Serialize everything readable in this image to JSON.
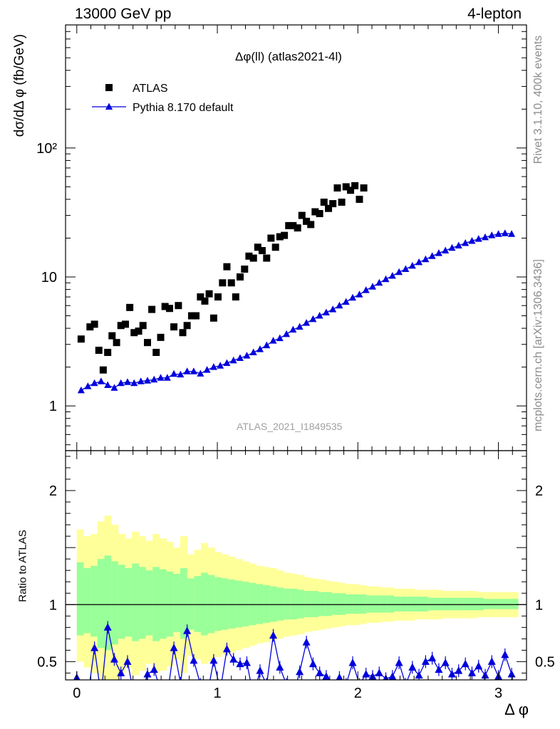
{
  "header": {
    "left": "13000 GeV pp",
    "right": "4-lepton"
  },
  "side_text": {
    "rivet": "Rivet 3.1.10,  400k events",
    "mcplots": "mcplots.cern.ch [arXiv:1306.3436]"
  },
  "watermark": "ATLAS_2021_I1849535",
  "chart_data": [
    {
      "type": "scatter",
      "title": "Δφ(ll) (atlas2021-4l)",
      "ylabel": "dσ/dΔ φ (fb/GeV)",
      "xlabel": "Δ φ",
      "yscale": "log",
      "xlim": [
        -0.08,
        3.2
      ],
      "ylim": [
        0.45,
        900
      ],
      "y_ticks": [
        1,
        10,
        100
      ],
      "y_tick_labels": [
        "1",
        "10",
        "10²"
      ],
      "legend_position": "top-left",
      "series": [
        {
          "name": "ATLAS",
          "marker": "square",
          "color": "#000000",
          "x": [
            0.031,
            0.094,
            0.126,
            0.157,
            0.188,
            0.22,
            0.251,
            0.283,
            0.314,
            0.346,
            0.377,
            0.408,
            0.44,
            0.471,
            0.503,
            0.534,
            0.565,
            0.597,
            0.628,
            0.66,
            0.691,
            0.723,
            0.754,
            0.785,
            0.817,
            0.848,
            0.88,
            0.911,
            0.942,
            0.974,
            1.005,
            1.037,
            1.068,
            1.1,
            1.131,
            1.162,
            1.194,
            1.225,
            1.257,
            1.288,
            1.319,
            1.351,
            1.382,
            1.414,
            1.445,
            1.477,
            1.508,
            1.539,
            1.571,
            1.602,
            1.634,
            1.665,
            1.696,
            1.728,
            1.759,
            1.791,
            1.822,
            1.854,
            1.885,
            1.916,
            1.948,
            1.979,
            2.011,
            2.042,
            2.073,
            2.105,
            2.136,
            2.168,
            2.199,
            2.231,
            2.262,
            2.293,
            2.325,
            2.356,
            2.388,
            2.419,
            2.45,
            2.482,
            2.513,
            2.545,
            2.576,
            2.608,
            2.639,
            2.67,
            2.702,
            2.733,
            2.765,
            2.796,
            2.827,
            2.859,
            2.89,
            2.922,
            2.953,
            2.985,
            3.016,
            3.047,
            3.079,
            3.11
          ],
          "values": [
            3.3,
            4.1,
            4.3,
            2.7,
            1.9,
            2.6,
            3.5,
            3.1,
            4.2,
            4.3,
            5.8,
            3.7,
            3.8,
            4.2,
            3.1,
            5.6,
            2.6,
            3.4,
            5.9,
            5.7,
            4.1,
            6.0,
            3.7,
            4.2,
            5.0,
            5.0,
            7.0,
            6.5,
            7.4,
            4.8,
            7.0,
            9.0,
            12.0,
            9.0,
            7.0,
            10.0,
            11.5,
            14.5,
            14.0,
            17.0,
            16.0,
            14.0,
            20.0,
            17.0,
            20.5,
            21.0,
            25.0,
            25.0,
            24.0,
            30.0,
            27.0,
            25.5,
            32.0,
            31.0,
            38.0,
            34.0,
            37.0,
            49.0,
            38.0,
            50.0,
            47.0,
            51.0,
            40.0,
            49.0,
            null,
            null,
            null,
            null,
            null,
            null,
            null,
            null,
            null,
            null,
            null,
            null,
            null,
            null,
            null,
            null,
            null,
            null,
            null,
            null,
            null,
            null,
            null,
            null,
            null,
            null,
            null,
            null,
            null,
            null,
            null,
            null,
            null,
            null
          ]
        },
        {
          "name": "Pythia 8.170 default",
          "marker": "triangle",
          "color": "#0000dd",
          "x": [
            0.031,
            0.079,
            0.126,
            0.173,
            0.22,
            0.267,
            0.314,
            0.361,
            0.408,
            0.456,
            0.503,
            0.55,
            0.597,
            0.644,
            0.691,
            0.738,
            0.785,
            0.832,
            0.88,
            0.927,
            0.974,
            1.021,
            1.068,
            1.115,
            1.162,
            1.21,
            1.257,
            1.304,
            1.351,
            1.398,
            1.445,
            1.492,
            1.539,
            1.586,
            1.634,
            1.681,
            1.728,
            1.775,
            1.822,
            1.869,
            1.916,
            1.963,
            2.011,
            2.058,
            2.105,
            2.152,
            2.199,
            2.246,
            2.293,
            2.34,
            2.388,
            2.435,
            2.482,
            2.529,
            2.576,
            2.623,
            2.67,
            2.717,
            2.765,
            2.812,
            2.859,
            2.906,
            2.953,
            3.0,
            3.047,
            3.094
          ],
          "values": [
            1.32,
            1.42,
            1.5,
            1.55,
            1.45,
            1.38,
            1.5,
            1.53,
            1.5,
            1.55,
            1.57,
            1.6,
            1.65,
            1.65,
            1.77,
            1.75,
            1.85,
            1.85,
            1.78,
            1.9,
            2.0,
            2.05,
            2.15,
            2.25,
            2.35,
            2.45,
            2.6,
            2.75,
            2.95,
            3.2,
            3.35,
            3.6,
            3.9,
            4.1,
            4.4,
            4.7,
            5.0,
            5.3,
            5.6,
            6.0,
            6.4,
            6.9,
            7.3,
            7.9,
            8.4,
            9.0,
            9.6,
            10.2,
            10.9,
            11.5,
            12.2,
            13.0,
            13.7,
            14.5,
            15.3,
            16.0,
            16.8,
            17.5,
            18.3,
            19.0,
            19.7,
            20.3,
            21.0,
            21.5,
            21.8,
            21.5
          ]
        }
      ]
    },
    {
      "type": "line",
      "ylabel": "Ratio to ATLAS",
      "xlabel": "Δ φ",
      "xlim": [
        -0.08,
        3.2
      ],
      "ylim": [
        0.34,
        2.35
      ],
      "x_ticks": [
        0,
        1,
        2,
        3
      ],
      "y_ticks": [
        0.5,
        1,
        2
      ],
      "reference_line": 1,
      "bands": {
        "yellow_upper": [
          1.66,
          1.6,
          1.62,
          1.73,
          1.78,
          1.7,
          1.62,
          1.58,
          1.64,
          1.6,
          1.56,
          1.62,
          1.58,
          1.55,
          1.5,
          1.6,
          1.44,
          1.48,
          1.54,
          1.5,
          1.46,
          1.44,
          1.42,
          1.4,
          1.38,
          1.36,
          1.34,
          1.33,
          1.32,
          1.3,
          1.28,
          1.27,
          1.26,
          1.24,
          1.23,
          1.22,
          1.21,
          1.2,
          1.19,
          1.18,
          1.18,
          1.17,
          1.16,
          1.16,
          1.15,
          1.15,
          1.14,
          1.14,
          1.14,
          1.13,
          1.13,
          1.13,
          1.13,
          1.12,
          1.12,
          1.12,
          1.12,
          1.12,
          1.11,
          1.11,
          1.11,
          1.11,
          1.11,
          1.11
        ],
        "green_upper": [
          1.37,
          1.32,
          1.34,
          1.4,
          1.43,
          1.38,
          1.35,
          1.32,
          1.36,
          1.33,
          1.3,
          1.33,
          1.31,
          1.29,
          1.27,
          1.32,
          1.23,
          1.25,
          1.28,
          1.26,
          1.24,
          1.23,
          1.22,
          1.21,
          1.2,
          1.19,
          1.18,
          1.17,
          1.16,
          1.15,
          1.14,
          1.14,
          1.13,
          1.12,
          1.12,
          1.11,
          1.11,
          1.1,
          1.1,
          1.09,
          1.09,
          1.09,
          1.08,
          1.08,
          1.08,
          1.08,
          1.07,
          1.07,
          1.07,
          1.07,
          1.07,
          1.06,
          1.06,
          1.06,
          1.06,
          1.06,
          1.06,
          1.06,
          1.06,
          1.05,
          1.05,
          1.05,
          1.05,
          1.05
        ],
        "green_lower": [
          0.73,
          0.75,
          0.72,
          0.62,
          0.6,
          0.65,
          0.7,
          0.72,
          0.68,
          0.7,
          0.73,
          0.68,
          0.7,
          0.72,
          0.76,
          0.7,
          0.78,
          0.76,
          0.73,
          0.75,
          0.77,
          0.78,
          0.79,
          0.8,
          0.81,
          0.82,
          0.83,
          0.84,
          0.85,
          0.86,
          0.87,
          0.87,
          0.88,
          0.89,
          0.89,
          0.9,
          0.9,
          0.91,
          0.91,
          0.92,
          0.92,
          0.92,
          0.93,
          0.93,
          0.93,
          0.93,
          0.94,
          0.94,
          0.94,
          0.94,
          0.94,
          0.95,
          0.95,
          0.95,
          0.95,
          0.95,
          0.95,
          0.95,
          0.95,
          0.96,
          0.96,
          0.96,
          0.96,
          0.96
        ],
        "yellow_lower": [
          0.5,
          0.45,
          0.4,
          0.3,
          0.25,
          0.32,
          0.4,
          0.45,
          0.38,
          0.42,
          0.48,
          0.4,
          0.42,
          0.46,
          0.52,
          0.4,
          0.55,
          0.52,
          0.48,
          0.5,
          0.54,
          0.56,
          0.58,
          0.6,
          0.62,
          0.64,
          0.66,
          0.67,
          0.69,
          0.7,
          0.72,
          0.73,
          0.74,
          0.76,
          0.77,
          0.78,
          0.79,
          0.8,
          0.81,
          0.82,
          0.82,
          0.83,
          0.84,
          0.84,
          0.85,
          0.85,
          0.86,
          0.86,
          0.86,
          0.87,
          0.87,
          0.87,
          0.87,
          0.88,
          0.88,
          0.88,
          0.88,
          0.88,
          0.89,
          0.89,
          0.89,
          0.89,
          0.89,
          0.89
        ]
      },
      "series": [
        {
          "name": "Pythia 8.170 default",
          "color": "#0000dd",
          "x": [
            0.0,
            0.079,
            0.126,
            0.173,
            0.22,
            0.267,
            0.314,
            0.361,
            0.408,
            0.456,
            0.503,
            0.55,
            0.597,
            0.644,
            0.691,
            0.738,
            0.785,
            0.832,
            0.88,
            0.927,
            0.974,
            1.021,
            1.068,
            1.115,
            1.162,
            1.21,
            1.257,
            1.304,
            1.351,
            1.398,
            1.445,
            1.492,
            1.539,
            1.586,
            1.634,
            1.681,
            1.728,
            1.775,
            1.822,
            1.869,
            1.916,
            1.963,
            2.011,
            2.058,
            2.105,
            2.152,
            2.199,
            2.246,
            2.293,
            2.34,
            2.388,
            2.435,
            2.482,
            2.529,
            2.576,
            2.623,
            2.67,
            2.717,
            2.765,
            2.812,
            2.859,
            2.906,
            2.953,
            3.0,
            3.047,
            3.094
          ],
          "values": [
            0.36,
            0.2,
            0.62,
            0.2,
            0.8,
            0.52,
            0.4,
            0.5,
            0.2,
            0.2,
            0.39,
            0.43,
            0.25,
            0.2,
            0.62,
            0.31,
            0.77,
            0.51,
            0.3,
            0.2,
            0.51,
            0.25,
            0.61,
            0.52,
            0.48,
            0.49,
            0.2,
            0.42,
            0.3,
            0.73,
            0.45,
            0.3,
            0.2,
            0.41,
            0.67,
            0.48,
            0.4,
            0.37,
            0.2,
            0.36,
            0.3,
            0.49,
            0.3,
            0.39,
            0.37,
            0.4,
            0.35,
            0.37,
            0.49,
            0.3,
            0.45,
            0.38,
            0.5,
            0.53,
            0.43,
            0.49,
            0.39,
            0.42,
            0.48,
            0.4,
            0.46,
            0.38,
            0.5,
            0.37,
            0.56,
            0.39
          ]
        }
      ]
    }
  ]
}
